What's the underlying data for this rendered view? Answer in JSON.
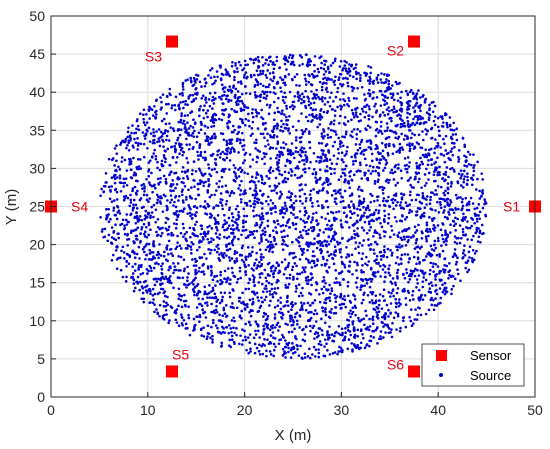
{
  "chart_data": {
    "type": "scatter",
    "title": "",
    "xlabel": "X (m)",
    "ylabel": "Y (m)",
    "xlim": [
      0,
      50
    ],
    "ylim": [
      0,
      50
    ],
    "xticks": [
      "0",
      "10",
      "20",
      "30",
      "40",
      "50"
    ],
    "yticks": [
      "0",
      "5",
      "10",
      "15",
      "20",
      "25",
      "30",
      "35",
      "40",
      "45",
      "50"
    ],
    "grid": true,
    "legend_position": "bottom-right",
    "series": [
      {
        "name": "Sensor",
        "marker": "square",
        "color": "#ff0000",
        "points": [
          {
            "label": "S1",
            "x": 50,
            "y": 25
          },
          {
            "label": "S2",
            "x": 37.5,
            "y": 46.65
          },
          {
            "label": "S3",
            "x": 12.5,
            "y": 46.65
          },
          {
            "label": "S4",
            "x": 0,
            "y": 25
          },
          {
            "label": "S5",
            "x": 12.5,
            "y": 3.35
          },
          {
            "label": "S6",
            "x": 37.5,
            "y": 3.35
          }
        ]
      },
      {
        "name": "Source",
        "marker": "dot",
        "color": "#0000cc",
        "distribution": "uniform",
        "region": {
          "shape": "circle",
          "center_x": 25,
          "center_y": 25,
          "radius": 20
        },
        "count": 5000
      }
    ],
    "label_color": "#e8000f"
  }
}
